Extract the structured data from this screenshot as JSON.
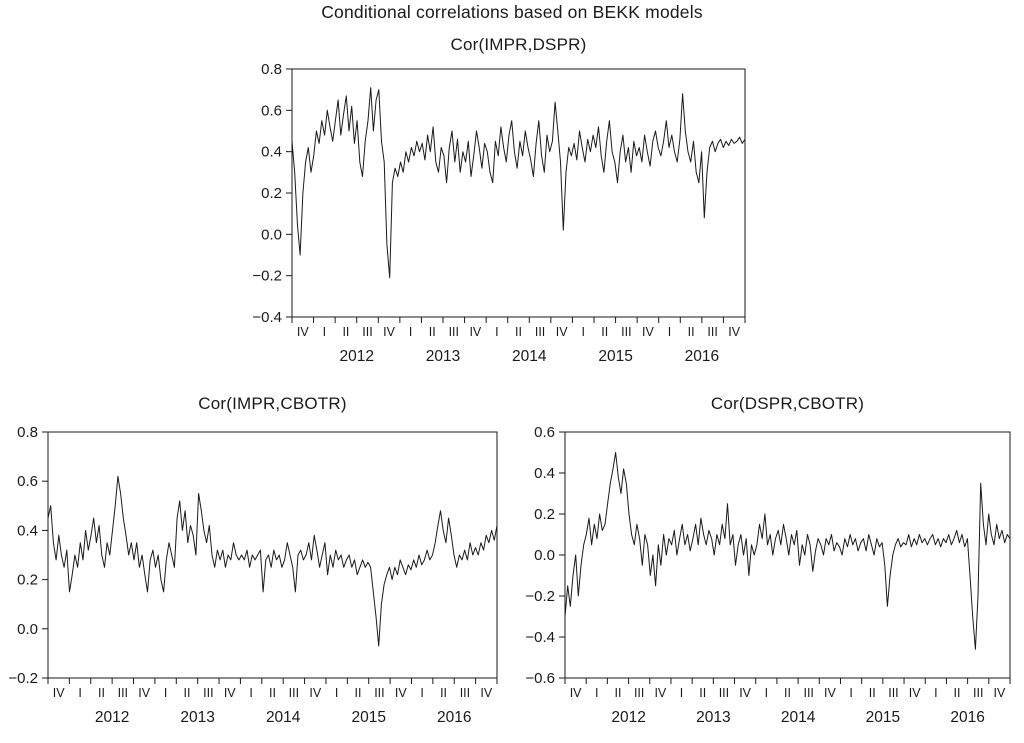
{
  "figure": {
    "main_title": "Conditional correlations based on BEKK models"
  },
  "chart_data": [
    {
      "type": "line",
      "title": "Cor(IMPR,DSPR)",
      "ylim": [
        -0.4,
        0.8
      ],
      "yticks": [
        0.8,
        0.6,
        0.4,
        0.2,
        0.0,
        -0.2,
        -0.4
      ],
      "ytick_labels": [
        "0.8",
        "0.6",
        "0.4",
        "0.2",
        "0.0",
        "−0.2",
        "−0.4"
      ],
      "x_quarter_labels": [
        "IV",
        "I",
        "II",
        "III",
        "IV",
        "I",
        "II",
        "III",
        "IV",
        "I",
        "II",
        "III",
        "IV",
        "I",
        "II",
        "III",
        "IV",
        "I",
        "II",
        "III",
        "IV"
      ],
      "year_labels": [
        "2012",
        "2013",
        "2014",
        "2015",
        "2016"
      ],
      "grid": false,
      "legend": "none",
      "values": [
        0.45,
        0.3,
        0.05,
        -0.1,
        0.2,
        0.35,
        0.42,
        0.3,
        0.38,
        0.5,
        0.44,
        0.55,
        0.48,
        0.6,
        0.52,
        0.45,
        0.55,
        0.65,
        0.48,
        0.58,
        0.67,
        0.5,
        0.62,
        0.44,
        0.55,
        0.35,
        0.28,
        0.45,
        0.55,
        0.71,
        0.5,
        0.65,
        0.7,
        0.45,
        0.35,
        -0.05,
        -0.21,
        0.25,
        0.32,
        0.28,
        0.35,
        0.3,
        0.4,
        0.35,
        0.42,
        0.38,
        0.45,
        0.4,
        0.44,
        0.36,
        0.48,
        0.4,
        0.52,
        0.35,
        0.3,
        0.42,
        0.38,
        0.25,
        0.42,
        0.5,
        0.35,
        0.46,
        0.3,
        0.4,
        0.35,
        0.45,
        0.28,
        0.38,
        0.5,
        0.42,
        0.32,
        0.44,
        0.4,
        0.3,
        0.25,
        0.45,
        0.38,
        0.52,
        0.42,
        0.35,
        0.48,
        0.55,
        0.4,
        0.32,
        0.45,
        0.38,
        0.5,
        0.42,
        0.36,
        0.28,
        0.44,
        0.55,
        0.38,
        0.3,
        0.48,
        0.4,
        0.45,
        0.64,
        0.5,
        0.35,
        0.02,
        0.3,
        0.42,
        0.38,
        0.44,
        0.36,
        0.5,
        0.42,
        0.35,
        0.46,
        0.4,
        0.48,
        0.42,
        0.52,
        0.38,
        0.3,
        0.45,
        0.55,
        0.4,
        0.35,
        0.25,
        0.4,
        0.48,
        0.35,
        0.42,
        0.3,
        0.45,
        0.38,
        0.42,
        0.35,
        0.48,
        0.4,
        0.33,
        0.45,
        0.5,
        0.42,
        0.38,
        0.45,
        0.55,
        0.42,
        0.48,
        0.4,
        0.35,
        0.46,
        0.68,
        0.5,
        0.4,
        0.35,
        0.45,
        0.3,
        0.25,
        0.4,
        0.08,
        0.3,
        0.42,
        0.45,
        0.4,
        0.44,
        0.46,
        0.42,
        0.45,
        0.43,
        0.46,
        0.44,
        0.45,
        0.47,
        0.44,
        0.46
      ]
    },
    {
      "type": "line",
      "title": "Cor(IMPR,CBOTR)",
      "ylim": [
        -0.2,
        0.8
      ],
      "yticks": [
        0.8,
        0.6,
        0.4,
        0.2,
        0.0,
        -0.2
      ],
      "ytick_labels": [
        "0.8",
        "0.6",
        "0.4",
        "0.2",
        "0.0",
        "−0.2"
      ],
      "x_quarter_labels": [
        "IV",
        "I",
        "II",
        "III",
        "IV",
        "I",
        "II",
        "III",
        "IV",
        "I",
        "II",
        "III",
        "IV",
        "I",
        "II",
        "III",
        "IV",
        "I",
        "II",
        "III",
        "IV"
      ],
      "year_labels": [
        "2012",
        "2013",
        "2014",
        "2015",
        "2016"
      ],
      "grid": false,
      "legend": "none",
      "values": [
        0.45,
        0.5,
        0.35,
        0.28,
        0.38,
        0.3,
        0.25,
        0.32,
        0.15,
        0.22,
        0.3,
        0.25,
        0.35,
        0.28,
        0.4,
        0.32,
        0.38,
        0.45,
        0.35,
        0.42,
        0.3,
        0.25,
        0.35,
        0.3,
        0.4,
        0.5,
        0.62,
        0.55,
        0.45,
        0.38,
        0.3,
        0.35,
        0.28,
        0.35,
        0.25,
        0.3,
        0.22,
        0.15,
        0.28,
        0.32,
        0.25,
        0.3,
        0.2,
        0.15,
        0.28,
        0.35,
        0.3,
        0.25,
        0.45,
        0.52,
        0.4,
        0.48,
        0.35,
        0.42,
        0.38,
        0.3,
        0.55,
        0.48,
        0.4,
        0.35,
        0.42,
        0.3,
        0.25,
        0.32,
        0.28,
        0.32,
        0.25,
        0.3,
        0.28,
        0.35,
        0.3,
        0.28,
        0.3,
        0.28,
        0.32,
        0.25,
        0.3,
        0.28,
        0.3,
        0.32,
        0.15,
        0.28,
        0.3,
        0.25,
        0.32,
        0.28,
        0.3,
        0.25,
        0.28,
        0.35,
        0.3,
        0.25,
        0.15,
        0.3,
        0.32,
        0.28,
        0.3,
        0.35,
        0.28,
        0.38,
        0.32,
        0.25,
        0.3,
        0.35,
        0.22,
        0.3,
        0.25,
        0.32,
        0.28,
        0.3,
        0.25,
        0.28,
        0.3,
        0.25,
        0.28,
        0.22,
        0.25,
        0.28,
        0.25,
        0.27,
        0.25,
        0.15,
        0.05,
        -0.07,
        0.1,
        0.18,
        0.22,
        0.25,
        0.2,
        0.25,
        0.22,
        0.28,
        0.25,
        0.22,
        0.26,
        0.24,
        0.28,
        0.25,
        0.3,
        0.26,
        0.28,
        0.32,
        0.28,
        0.3,
        0.35,
        0.42,
        0.48,
        0.4,
        0.35,
        0.45,
        0.38,
        0.3,
        0.25,
        0.3,
        0.28,
        0.32,
        0.28,
        0.35,
        0.3,
        0.33,
        0.3,
        0.35,
        0.32,
        0.38,
        0.35,
        0.4,
        0.36,
        0.42
      ]
    },
    {
      "type": "line",
      "title": "Cor(DSPR,CBOTR)",
      "ylim": [
        -0.6,
        0.6
      ],
      "yticks": [
        0.6,
        0.4,
        0.2,
        0.0,
        -0.2,
        -0.4,
        -0.6
      ],
      "ytick_labels": [
        "0.6",
        "0.4",
        "0.2",
        "0.0",
        "−0.2",
        "−0.4",
        "−0.6"
      ],
      "x_quarter_labels": [
        "IV",
        "I",
        "II",
        "III",
        "IV",
        "I",
        "II",
        "III",
        "IV",
        "I",
        "II",
        "III",
        "IV",
        "I",
        "II",
        "III",
        "IV",
        "I",
        "II",
        "III",
        "IV"
      ],
      "year_labels": [
        "2012",
        "2013",
        "2014",
        "2015",
        "2016"
      ],
      "grid": false,
      "legend": "none",
      "values": [
        -0.3,
        -0.15,
        -0.25,
        -0.1,
        0.0,
        -0.2,
        -0.05,
        0.05,
        0.1,
        0.18,
        0.05,
        0.15,
        0.08,
        0.2,
        0.12,
        0.15,
        0.25,
        0.35,
        0.42,
        0.5,
        0.38,
        0.3,
        0.42,
        0.35,
        0.2,
        0.1,
        0.05,
        0.15,
        0.08,
        -0.05,
        0.1,
        0.05,
        -0.1,
        0.0,
        -0.15,
        0.05,
        -0.05,
        0.1,
        0.0,
        0.08,
        0.05,
        0.12,
        0.0,
        0.08,
        0.15,
        0.05,
        0.1,
        0.02,
        0.08,
        0.15,
        0.05,
        0.18,
        0.1,
        0.05,
        0.12,
        0.08,
        0.0,
        0.1,
        0.05,
        0.15,
        0.08,
        0.25,
        0.05,
        0.1,
        -0.05,
        0.05,
        0.1,
        0.0,
        0.08,
        -0.1,
        0.05,
        0.0,
        0.05,
        0.15,
        0.08,
        0.2,
        0.05,
        0.1,
        0.0,
        0.08,
        0.12,
        0.05,
        0.15,
        0.08,
        0.0,
        0.1,
        0.05,
        0.12,
        -0.05,
        0.05,
        0.0,
        0.1,
        0.05,
        -0.08,
        0.02,
        0.08,
        0.05,
        0.0,
        0.08,
        0.05,
        0.1,
        0.02,
        0.06,
        0.04,
        0.0,
        0.08,
        0.04,
        0.1,
        0.05,
        0.08,
        0.02,
        0.06,
        0.08,
        0.02,
        0.1,
        0.05,
        0.0,
        0.08,
        0.04,
        0.06,
        -0.05,
        -0.25,
        -0.1,
        0.0,
        0.05,
        0.08,
        0.04,
        0.06,
        0.05,
        0.1,
        0.04,
        0.08,
        0.05,
        0.1,
        0.06,
        0.08,
        0.05,
        0.08,
        0.1,
        0.05,
        0.08,
        0.04,
        0.08,
        0.06,
        0.1,
        0.05,
        0.08,
        0.12,
        0.06,
        0.1,
        0.04,
        0.08,
        -0.1,
        -0.3,
        -0.46,
        -0.2,
        0.35,
        0.15,
        0.05,
        0.2,
        0.1,
        0.05,
        0.15,
        0.08,
        0.12,
        0.06,
        0.1,
        0.08
      ]
    }
  ]
}
